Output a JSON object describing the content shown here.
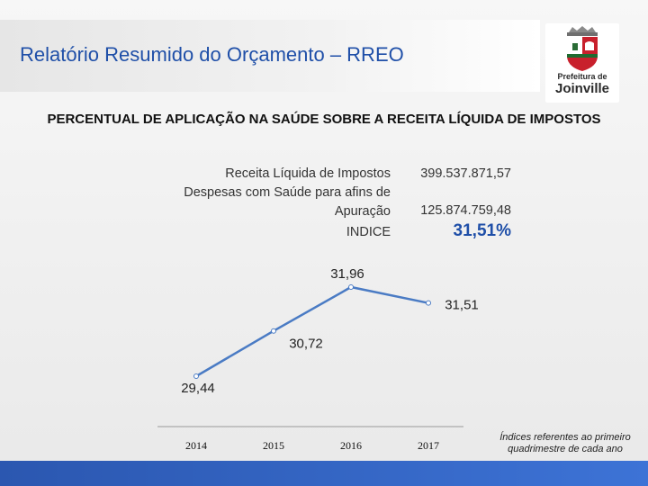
{
  "header": {
    "title": "Relatório Resumido do Orçamento – RREO",
    "logo_line1": "Prefeitura de",
    "logo_line2": "Joinville"
  },
  "subtitle": "PERCENTUAL DE APLICAÇÃO NA SAÚDE SOBRE A RECEITA LÍQUIDA DE IMPOSTOS",
  "summary": {
    "rows": [
      {
        "label": "Receita Líquida de Impostos",
        "value": "399.537.871,57"
      },
      {
        "label_lines": [
          "Despesas com Saúde para afins de",
          "Apuração"
        ],
        "value": "125.874.759,48"
      },
      {
        "label": "INDICE",
        "value": "31,51%"
      }
    ]
  },
  "chart_data": {
    "type": "line",
    "categories": [
      "2014",
      "2015",
      "2016",
      "2017"
    ],
    "x": [
      2014,
      2015,
      2016,
      2017
    ],
    "values": [
      29.44,
      30.72,
      31.96,
      31.51
    ],
    "data_labels": [
      "29,44",
      "30,72",
      "31,96",
      "31,51"
    ],
    "title": "",
    "xlabel": "",
    "ylabel": "",
    "grid": false,
    "line_color": "#4a7bc4"
  },
  "footnote": {
    "lines": [
      "Índices referentes ao primeiro",
      "quadrimestre de cada ano"
    ]
  },
  "colors": {
    "title": "#1f4fa8",
    "accent_bar": "#2b57b0",
    "index_value": "#1f4fa8"
  }
}
